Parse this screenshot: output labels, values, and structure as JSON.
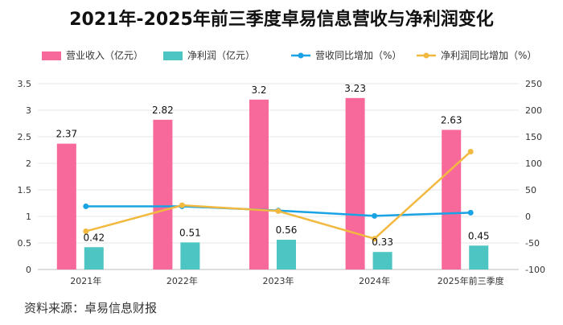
{
  "chart_data": {
    "type": "bar",
    "title": "2021年-2025年前三季度卓易信息营收与净利润变化",
    "categories": [
      "2021年",
      "2022年",
      "2023年",
      "2024年",
      "2025年前三季度"
    ],
    "series": [
      {
        "name": "营业收入（亿元）",
        "kind": "bar",
        "axis": "left",
        "color": "#f7699a",
        "values": [
          2.37,
          2.82,
          3.2,
          3.23,
          2.63
        ]
      },
      {
        "name": "净利润（亿元）",
        "kind": "bar",
        "axis": "left",
        "color": "#4dc5c3",
        "values": [
          0.42,
          0.51,
          0.56,
          0.33,
          0.45
        ]
      },
      {
        "name": "营收同比增加（%）",
        "kind": "line",
        "axis": "right",
        "color": "#1aa3e4",
        "values": [
          19,
          19,
          11,
          1,
          7
        ]
      },
      {
        "name": "净利润同比增加（%）",
        "kind": "line",
        "axis": "right",
        "color": "#f2b941",
        "values": [
          -28,
          21,
          10,
          -42,
          122
        ]
      }
    ],
    "y_left": {
      "min": 0,
      "max": 3.5,
      "ticks": [
        "0",
        "0.5",
        "1",
        "1.5",
        "2",
        "2.5",
        "3",
        "3.5"
      ]
    },
    "y_right": {
      "min": -100,
      "max": 250,
      "ticks": [
        "-100",
        "-50",
        "0",
        "50",
        "100",
        "150",
        "200",
        "250"
      ]
    },
    "grid": true,
    "legend_position": "top"
  },
  "source_note": "资料来源：卓易信息财报"
}
